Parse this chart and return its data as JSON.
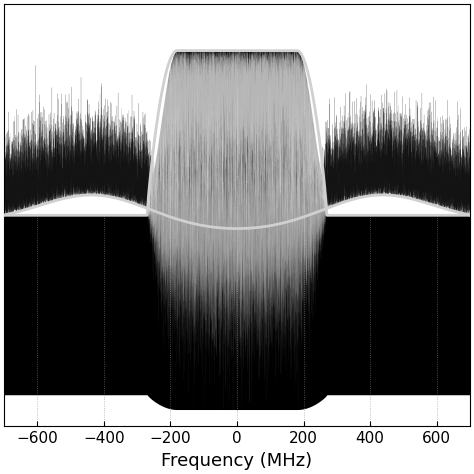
{
  "title": "",
  "xlabel": "Frequency (MHz)",
  "ylabel": "",
  "xlim": [
    -700,
    700
  ],
  "freq_min": -700,
  "freq_max": 700,
  "n_points": 8000,
  "background_color": "#ffffff",
  "noise_color": "#000000",
  "envelope_color": "#d0d0d0",
  "grid_color": "#999999",
  "xlabel_fontsize": 13,
  "tick_fontsize": 11
}
